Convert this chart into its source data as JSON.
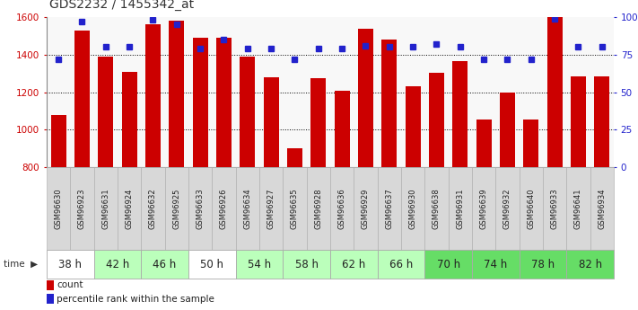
{
  "title": "GDS2232 / 1455342_at",
  "samples": [
    "GSM96630",
    "GSM96923",
    "GSM96631",
    "GSM96924",
    "GSM96632",
    "GSM96925",
    "GSM96633",
    "GSM96926",
    "GSM96634",
    "GSM96927",
    "GSM96635",
    "GSM96928",
    "GSM96636",
    "GSM96929",
    "GSM96637",
    "GSM96930",
    "GSM96638",
    "GSM96931",
    "GSM96639",
    "GSM96932",
    "GSM96640",
    "GSM96933",
    "GSM96641",
    "GSM96934"
  ],
  "counts": [
    1080,
    1530,
    1390,
    1310,
    1560,
    1580,
    1490,
    1490,
    1390,
    1280,
    900,
    1275,
    1210,
    1540,
    1480,
    1230,
    1305,
    1365,
    1055,
    1200,
    1055,
    1600,
    1285,
    1285
  ],
  "percentile_ranks": [
    72,
    97,
    80,
    80,
    98,
    95,
    79,
    85,
    79,
    79,
    72,
    79,
    79,
    81,
    80,
    80,
    82,
    80,
    72,
    72,
    72,
    99,
    80,
    80
  ],
  "time_groups": [
    {
      "label": "38 h",
      "indices": [
        0,
        1
      ],
      "color": "#ffffff"
    },
    {
      "label": "42 h",
      "indices": [
        2,
        3
      ],
      "color": "#bbffbb"
    },
    {
      "label": "46 h",
      "indices": [
        4,
        5
      ],
      "color": "#bbffbb"
    },
    {
      "label": "50 h",
      "indices": [
        6,
        7
      ],
      "color": "#ffffff"
    },
    {
      "label": "54 h",
      "indices": [
        8,
        9
      ],
      "color": "#bbffbb"
    },
    {
      "label": "58 h",
      "indices": [
        10,
        11
      ],
      "color": "#bbffbb"
    },
    {
      "label": "62 h",
      "indices": [
        12,
        13
      ],
      "color": "#bbffbb"
    },
    {
      "label": "66 h",
      "indices": [
        14,
        15
      ],
      "color": "#bbffbb"
    },
    {
      "label": "70 h",
      "indices": [
        16,
        17
      ],
      "color": "#66dd66"
    },
    {
      "label": "74 h",
      "indices": [
        18,
        19
      ],
      "color": "#66dd66"
    },
    {
      "label": "78 h",
      "indices": [
        20,
        21
      ],
      "color": "#66dd66"
    },
    {
      "label": "82 h",
      "indices": [
        22,
        23
      ],
      "color": "#66dd66"
    }
  ],
  "y_min": 800,
  "y_max": 1600,
  "y_ticks": [
    800,
    1000,
    1200,
    1400,
    1600
  ],
  "right_y_ticks": [
    0,
    25,
    50,
    75,
    100
  ],
  "bar_color": "#cc0000",
  "dot_color": "#2222cc",
  "plot_bg": "#f8f8f8",
  "title_fontsize": 10,
  "tick_fontsize": 7.5,
  "sample_fontsize": 6,
  "time_fontsize": 8.5
}
